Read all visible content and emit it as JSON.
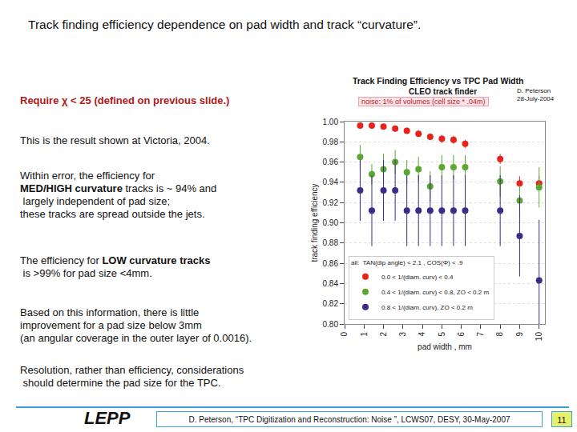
{
  "slide": {
    "title": "Track finding efficiency dependence on pad width and track “curvature”.",
    "paragraphs": [
      [
        [
          {
            "text": "Require ",
            "bold": true,
            "color": "#b01818"
          },
          {
            "text": "χ",
            "bold": true,
            "color": "#b01818"
          },
          {
            "text": " < 25 (defined on previous slide.)",
            "bold": true,
            "color": "#b01818"
          }
        ]
      ],
      [
        [
          {
            "text": "This is the result shown at Victoria, 2004."
          }
        ]
      ],
      [
        [
          {
            "text": "Within error, the efficiency for"
          }
        ],
        [
          {
            "text": "MED/HIGH curvature",
            "bold": true
          },
          {
            "text": " tracks is ~ 94% and"
          }
        ],
        [
          {
            "text": " largely independent of pad size;"
          }
        ],
        [
          {
            "text": "these tracks are spread outside the jets."
          }
        ]
      ],
      [
        [
          {
            "text": "The efficiency for "
          },
          {
            "text": "LOW curvature tracks",
            "bold": true
          }
        ],
        [
          {
            "text": " is >99% for pad size <4mm."
          }
        ]
      ],
      [
        [
          {
            "text": "Based on this information, there is little"
          }
        ],
        [
          {
            "text": "improvement for a pad size below 3mm"
          }
        ],
        [
          {
            "text": "(an angular coverage in the outer layer of 0.0016)."
          }
        ]
      ],
      [
        [
          {
            "text": "Resolution, rather than efficiency, considerations"
          }
        ],
        [
          {
            "text": " should determine the pad size for the TPC."
          }
        ]
      ]
    ],
    "logo": "LEPP",
    "footer": "D. Peterson, “TPC Digitization and Reconstruction: Noise ”, LCWS07, DESY, 30-May-2007",
    "page_number": "11"
  },
  "chart_data": {
    "type": "scatter",
    "title": "Track Finding Efficiency vs TPC Pad Width",
    "subtitle": "CLEO track finder",
    "annotations": [
      "D. Peterson",
      "28-July-2004",
      "noise: 1% of volumes (cell size * .04m)"
    ],
    "x_label": "pad width , mm",
    "y_label": "track finding efficiency",
    "x": [
      0.8,
      1.4,
      2.0,
      2.6,
      3.2,
      3.8,
      4.4,
      5.0,
      5.6,
      6.2,
      8,
      9,
      10
    ],
    "series": [
      {
        "name": "0.0 < 1/(diam. curv) < 0.4",
        "color": "#e8231c",
        "marker": "circle",
        "values": [
          0.996,
          0.996,
          0.995,
          0.993,
          0.991,
          0.988,
          0.985,
          0.983,
          0.982,
          0.978,
          0.963,
          0.939,
          0.939
        ],
        "errors": [
          0.002,
          0.002,
          0.002,
          0.003,
          0.003,
          0.003,
          0.003,
          0.004,
          0.004,
          0.004,
          0.005,
          0.007,
          0.007
        ]
      },
      {
        "name": "0.4 < 1/(diam. curv) < 0.8, ZO < 0.2 m",
        "color": "#5aa832",
        "marker": "circle",
        "values": [
          0.965,
          0.948,
          0.953,
          0.96,
          0.95,
          0.953,
          0.936,
          0.955,
          0.955,
          0.955,
          0.941,
          0.922,
          0.935
        ],
        "errors": [
          0.012,
          0.01,
          0.015,
          0.012,
          0.012,
          0.012,
          0.015,
          0.012,
          0.012,
          0.012,
          0.015,
          0.015,
          0.02
        ]
      },
      {
        "name": "0.8 < 1/(diam. curv), ZO < 0.2 m",
        "color": "#3e2a87",
        "marker": "circle",
        "values": [
          0.932,
          0.912,
          0.932,
          0.932,
          0.912,
          0.912,
          0.912,
          0.912,
          0.912,
          0.912,
          0.912,
          0.887,
          0.843
        ],
        "errors": [
          0.03,
          0.035,
          0.03,
          0.03,
          0.035,
          0.035,
          0.035,
          0.035,
          0.035,
          0.035,
          0.035,
          0.04,
          0.06
        ]
      }
    ],
    "legend_note": "all:  TAN(dip angle) < 2.1 , COS(Φ) < .9",
    "xlim": [
      0,
      10.3
    ],
    "xticks": [
      0,
      1,
      2,
      3,
      4,
      5,
      6,
      7,
      8,
      9,
      10
    ],
    "ylim": [
      0.8,
      1.0
    ],
    "yticks": [
      {
        "value": 0.8,
        "label": "0.80"
      },
      0.82,
      0.84,
      0.86,
      0.88,
      {
        "value": 0.9,
        "label": "0.90"
      },
      0.92,
      0.94,
      0.96,
      0.98,
      {
        "value": 1.0,
        "label": "1.00"
      }
    ],
    "grid": true,
    "legend": "lower left"
  }
}
